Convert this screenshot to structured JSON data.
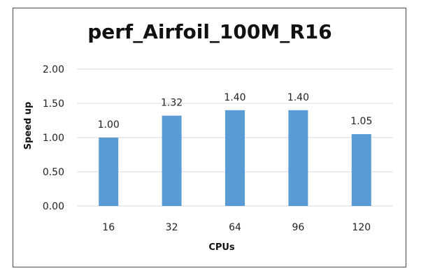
{
  "chart_data": {
    "type": "bar",
    "title": "perf_Airfoil_100M_R16",
    "xlabel": "CPUs",
    "ylabel": "Speed up",
    "categories": [
      "16",
      "32",
      "64",
      "96",
      "120"
    ],
    "values": [
      1.0,
      1.32,
      1.4,
      1.4,
      1.05
    ],
    "data_labels": [
      "1.00",
      "1.32",
      "1.40",
      "1.40",
      "1.05"
    ],
    "y_ticks": [
      "0.00",
      "0.50",
      "1.00",
      "1.50",
      "2.00"
    ],
    "ylim": [
      0,
      2
    ],
    "grid": true,
    "legend": "none",
    "bar_color": "#5b9bd5",
    "grid_color": "#d9d9d9"
  }
}
